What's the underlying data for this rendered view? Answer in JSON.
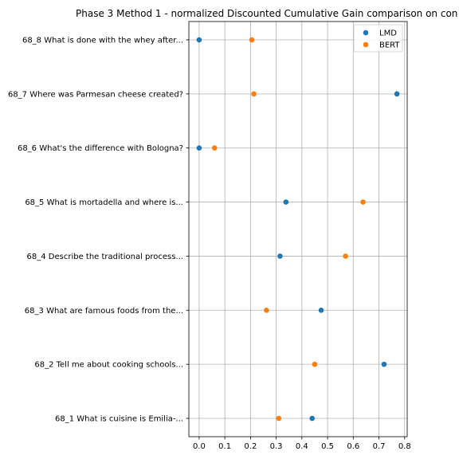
{
  "chart_data": {
    "type": "scatter",
    "title": "Phase 3 Method 1 - normalized Discounted Cumulative Gain comparison on con",
    "xlabel": "",
    "ylabel": "",
    "xlim": [
      -0.04,
      0.81
    ],
    "xticks": [
      0.0,
      0.1,
      0.2,
      0.3,
      0.4,
      0.5,
      0.6,
      0.7,
      0.8
    ],
    "xtick_labels": [
      "0.0",
      "0.1",
      "0.2",
      "0.3",
      "0.4",
      "0.5",
      "0.6",
      "0.7",
      "0.8"
    ],
    "grid": true,
    "legend_position": "top-right",
    "categories": [
      "68_1 What is cuisine is Emilia-...",
      "68_2 Tell me about cooking schools...",
      "68_3 What are famous foods from the...",
      "68_4 Describe the traditional process...",
      "68_5 What is mortadella and where is...",
      "68_6 What's the difference with Bologna?",
      "68_7 Where was Parmesan cheese created?",
      "68_8 What is done with the whey after..."
    ],
    "series": [
      {
        "name": "LMD",
        "color": "#1f77b4",
        "values": [
          0.44,
          0.72,
          0.475,
          0.315,
          0.338,
          0.0,
          0.77,
          0.0
        ]
      },
      {
        "name": "BERT",
        "color": "#ff7f0e",
        "values": [
          0.31,
          0.45,
          0.262,
          0.57,
          0.638,
          0.06,
          0.213,
          0.205
        ]
      }
    ]
  }
}
